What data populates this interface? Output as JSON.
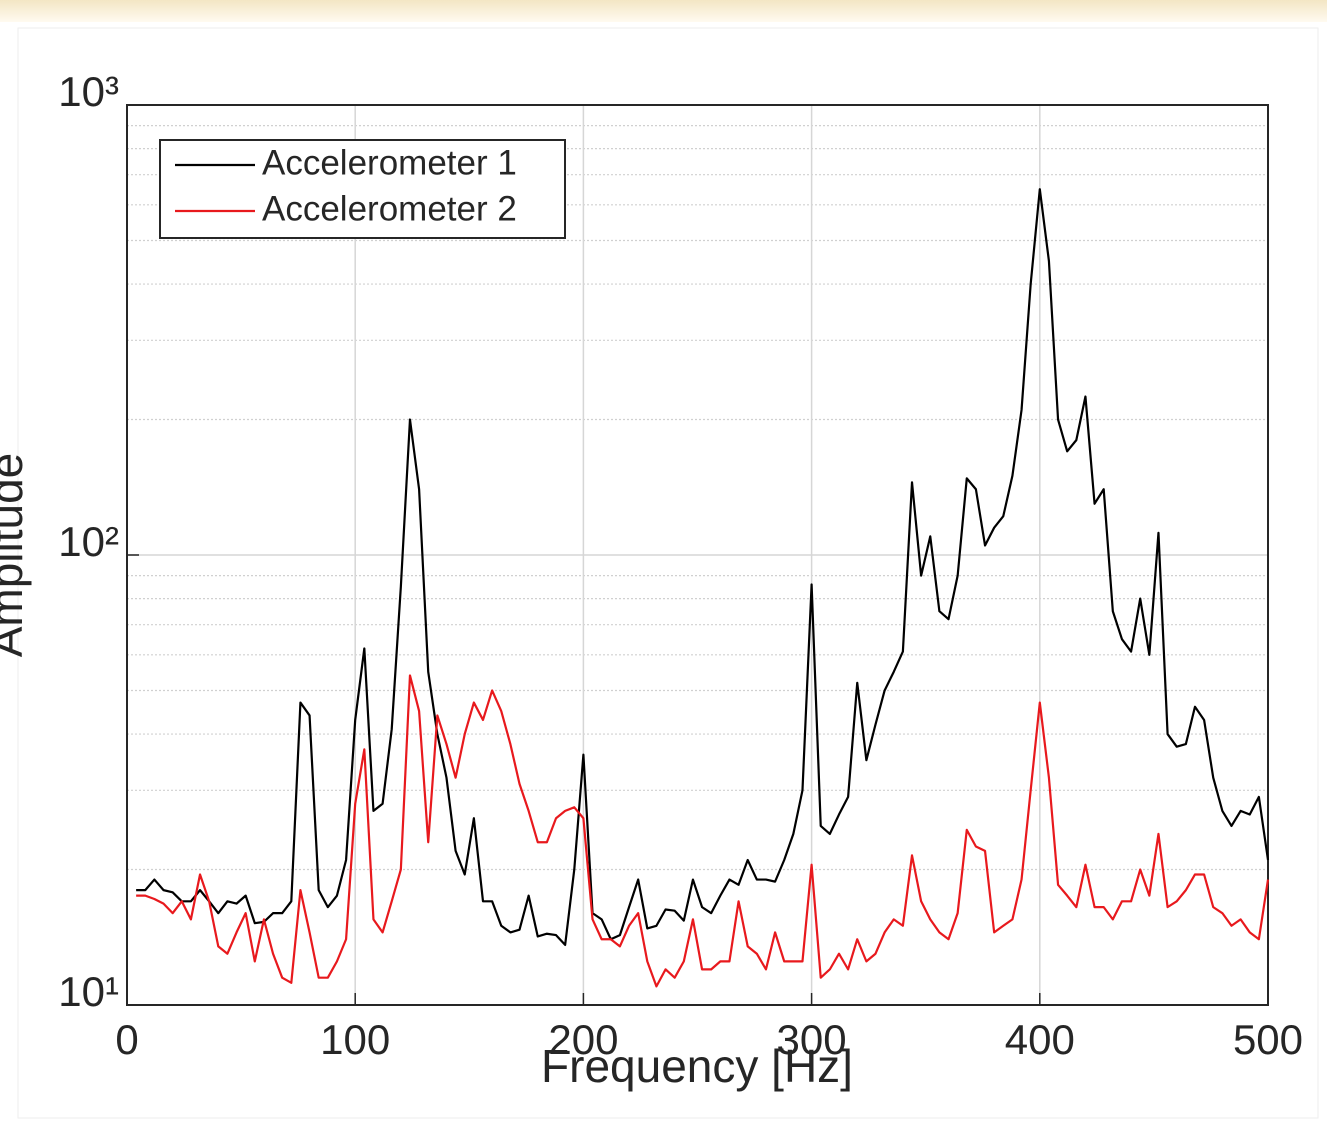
{
  "chart_data": {
    "type": "line",
    "xlabel": "Frequency [Hz]",
    "ylabel": "Amplitude",
    "x": [
      4,
      8,
      12,
      16,
      20,
      24,
      28,
      32,
      36,
      40,
      44,
      48,
      52,
      56,
      60,
      64,
      68,
      72,
      76,
      80,
      84,
      88,
      92,
      96,
      100,
      104,
      108,
      112,
      116,
      120,
      124,
      128,
      132,
      136,
      140,
      144,
      148,
      152,
      156,
      160,
      164,
      168,
      172,
      176,
      180,
      184,
      188,
      192,
      196,
      200,
      204,
      208,
      212,
      216,
      220,
      224,
      228,
      232,
      236,
      240,
      244,
      248,
      252,
      256,
      260,
      264,
      268,
      272,
      276,
      280,
      284,
      288,
      292,
      296,
      300,
      304,
      308,
      312,
      316,
      320,
      324,
      328,
      332,
      336,
      340,
      344,
      348,
      352,
      356,
      360,
      364,
      368,
      372,
      376,
      380,
      384,
      388,
      392,
      396,
      400,
      404,
      408,
      412,
      416,
      420,
      424,
      428,
      432,
      436,
      440,
      444,
      448,
      452,
      456,
      460,
      464,
      468,
      472,
      476,
      480,
      484,
      488,
      492,
      496,
      500
    ],
    "series": [
      {
        "name": "Accelerometer 1",
        "color": "#000000",
        "values": [
          18,
          18,
          19,
          18,
          17.8,
          17,
          17,
          18,
          17,
          16,
          17,
          16.8,
          17.5,
          15.2,
          15.3,
          16,
          16,
          17,
          47,
          44,
          18,
          16.5,
          17.5,
          21,
          43,
          62,
          27,
          28,
          41,
          85,
          200,
          140,
          55,
          40,
          32,
          22,
          19.5,
          26,
          17,
          17,
          15,
          14.5,
          14.7,
          17.5,
          14.2,
          14.4,
          14.3,
          13.6,
          20,
          36,
          16,
          15.5,
          14,
          14.3,
          16.5,
          19,
          14.8,
          15,
          16.3,
          16.2,
          15.4,
          19,
          16.5,
          16,
          17.5,
          19,
          18.5,
          21,
          19,
          19,
          18.8,
          21,
          24,
          30,
          86,
          25,
          24,
          26.5,
          29,
          52,
          35,
          42,
          50,
          55,
          61,
          145,
          90,
          110,
          75,
          72,
          90,
          148,
          140,
          105,
          115,
          122,
          150,
          210,
          400,
          650,
          450,
          200,
          170,
          180,
          225,
          130,
          140,
          75,
          65,
          61,
          80,
          60,
          112,
          40,
          37.5,
          38,
          46,
          43,
          32,
          27,
          25,
          27,
          26.5,
          29,
          21
        ]
      },
      {
        "name": "Accelerometer 2",
        "color": "#e8191d",
        "values": [
          17.5,
          17.5,
          17.2,
          16.8,
          16,
          17,
          15.5,
          19.5,
          17,
          13.5,
          13,
          14.5,
          16,
          12.5,
          15.5,
          13,
          11.5,
          11.2,
          18,
          14.5,
          11.5,
          11.5,
          12.5,
          14,
          28,
          37,
          15.5,
          14.5,
          17,
          20,
          54,
          45,
          23,
          44,
          38,
          32,
          40,
          47,
          43,
          50,
          45,
          38,
          31,
          27,
          23,
          23,
          26,
          27,
          27.5,
          26,
          15.5,
          14,
          14,
          13.5,
          15,
          16,
          12.5,
          11,
          12,
          11.5,
          12.5,
          15.5,
          12,
          12,
          12.5,
          12.5,
          17,
          13.5,
          13,
          12,
          14.5,
          12.5,
          12.5,
          12.5,
          20.5,
          11.5,
          12,
          13,
          12,
          14,
          12.5,
          13,
          14.5,
          15.5,
          15,
          21.5,
          17,
          15.5,
          14.5,
          14,
          16,
          24.5,
          22.5,
          22,
          14.5,
          15,
          15.5,
          19,
          30,
          47,
          32,
          18.5,
          17.5,
          16.5,
          20.5,
          16.5,
          16.5,
          15.5,
          17,
          17,
          20,
          17.5,
          24,
          16.5,
          17,
          18,
          19.5,
          19.5,
          16.5,
          16,
          15,
          15.5,
          14.5,
          14,
          19
        ]
      }
    ],
    "xlim": [
      0,
      500
    ],
    "xticks": [
      0,
      100,
      200,
      300,
      400,
      500
    ],
    "ylim": [
      10,
      1000
    ],
    "yscale": "log",
    "yticks": [
      {
        "value": 10,
        "label": "10¹"
      },
      {
        "value": 100,
        "label": "10²"
      },
      {
        "value": 1000,
        "label": "10³"
      }
    ],
    "grid": true,
    "minor_grid": true,
    "legend": "upper left"
  }
}
